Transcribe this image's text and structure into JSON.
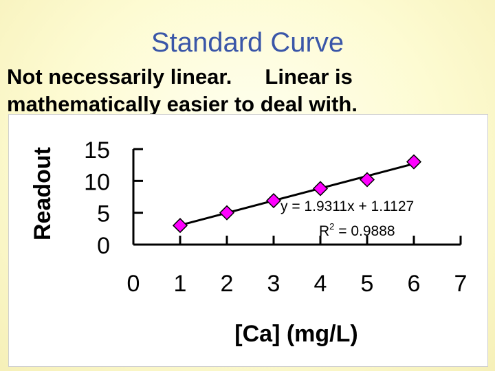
{
  "slide": {
    "title": "Standard Curve",
    "subtitle_part1": "Not necessarily linear.",
    "subtitle_part2": "Linear is",
    "subtitle_line2": "mathematically easier to deal with."
  },
  "chart_data": {
    "type": "scatter",
    "title": "",
    "xlabel": "[Ca] (mg/L)",
    "ylabel": "Readout",
    "xlim": [
      0,
      7
    ],
    "ylim": [
      0,
      15
    ],
    "x_ticks": [
      "0",
      "1",
      "2",
      "3",
      "4",
      "5",
      "6",
      "7"
    ],
    "y_ticks": [
      "0",
      "5",
      "10",
      "15"
    ],
    "grid": false,
    "series": [
      {
        "x": [
          1,
          2,
          3,
          4,
          5,
          6
        ],
        "y": [
          3.0,
          5.0,
          6.9,
          8.8,
          10.2,
          13.0
        ],
        "marker": "diamond",
        "marker_color": "#ff00ff"
      }
    ],
    "trendline": {
      "slope": 1.9311,
      "intercept": 1.1127,
      "equation": "y = 1.9311x + 1.1127",
      "r2_label": "R",
      "r2_sup": "2",
      "r2_value": " = 0.9888"
    }
  }
}
